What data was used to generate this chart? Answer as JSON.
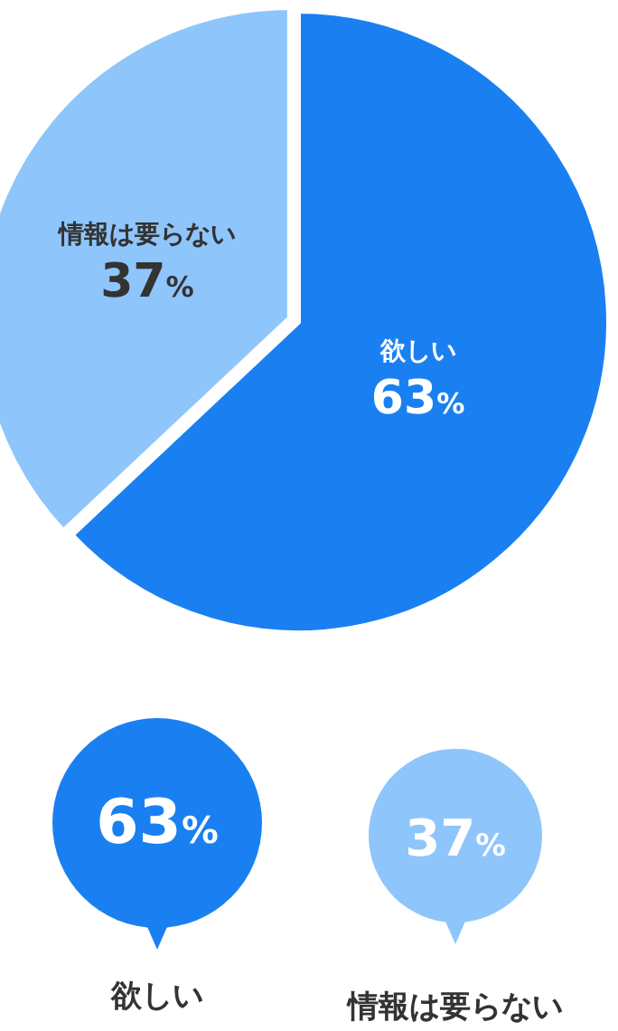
{
  "chart_data": {
    "type": "pie",
    "categories": [
      "欲しい",
      "情報は要らない"
    ],
    "values": [
      63,
      37
    ],
    "colors": [
      "#1a80f2",
      "#8ec5fb"
    ],
    "value_labels": [
      "63%",
      "37%"
    ],
    "legend": "bottom"
  }
}
